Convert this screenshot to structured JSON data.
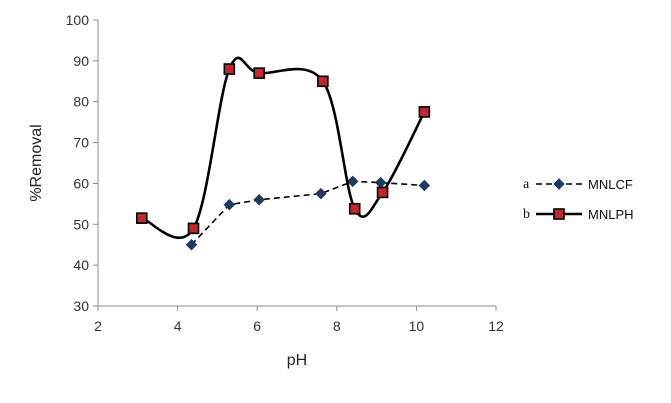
{
  "chart_data": {
    "type": "line",
    "title": "",
    "xlabel": "pH",
    "ylabel": "%Removal",
    "xlim": [
      2,
      12
    ],
    "ylim": [
      30,
      100
    ],
    "xticks": [
      "2",
      "4",
      "6",
      "8",
      "10",
      "12"
    ],
    "yticks": [
      "30",
      "40",
      "50",
      "60",
      "70",
      "80",
      "90",
      "100"
    ],
    "grid": false,
    "legend_position": "right",
    "series": [
      {
        "name": "MNLCF",
        "letter": "a",
        "style": "dashed",
        "marker": "diamond",
        "color": "#000000",
        "marker_color": "#1f3a5f",
        "x": [
          4.35,
          5.3,
          6.05,
          7.6,
          8.4,
          9.1,
          10.2
        ],
        "y": [
          45,
          54.8,
          56,
          57.5,
          60.5,
          60.2,
          59.5
        ]
      },
      {
        "name": "MNLPH",
        "letter": "b",
        "style": "solid",
        "marker": "square",
        "color": "#000000",
        "marker_color": "#c0292b",
        "x": [
          3.1,
          4.4,
          5.3,
          6.05,
          7.65,
          8.45,
          9.15,
          10.2
        ],
        "y": [
          51.5,
          49,
          88,
          87,
          85,
          53.8,
          57.8,
          77.5
        ]
      }
    ]
  }
}
